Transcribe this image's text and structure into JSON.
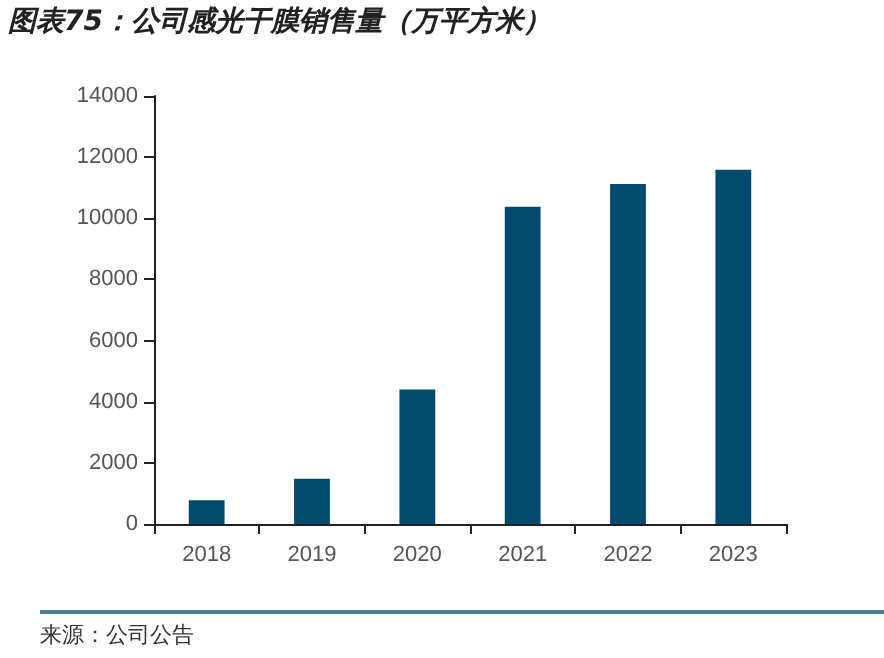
{
  "chart_data": {
    "type": "bar",
    "title": "图表75：公司感光干膜销售量（万平方米）",
    "categories": [
      "2018",
      "2019",
      "2020",
      "2021",
      "2022",
      "2023"
    ],
    "values": [
      780,
      1480,
      4400,
      10380,
      11120,
      11590
    ],
    "color": "#004b6e",
    "ylim": [
      0,
      14000
    ],
    "yticks": [
      0,
      2000,
      4000,
      6000,
      8000,
      10000,
      12000,
      14000
    ],
    "grid": false,
    "annotations": [
      "来源：公司公告"
    ]
  }
}
